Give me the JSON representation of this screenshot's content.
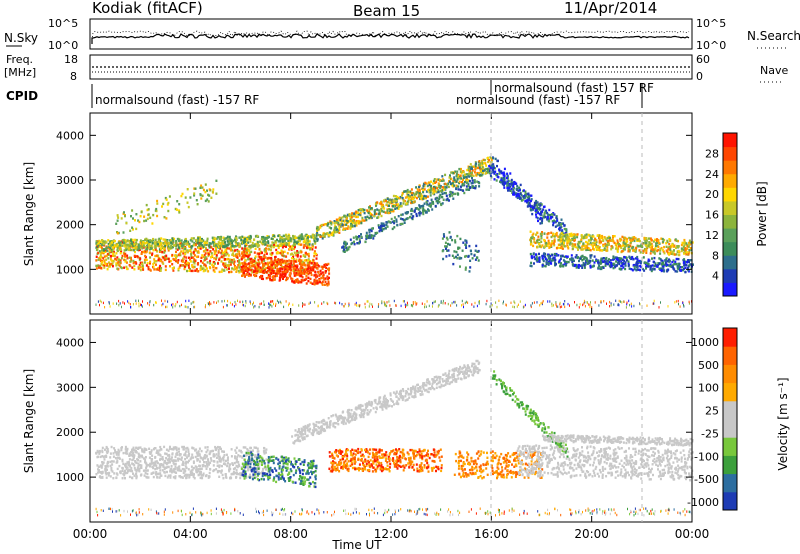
{
  "header": {
    "station": "Kodiak (fitACF)",
    "beam": "Beam 15",
    "date": "11/Apr/2014"
  },
  "aux_panels": {
    "nsky": {
      "label": "N.Sky",
      "yticks_left": [
        "10^5",
        "10^0"
      ],
      "yticks_right": [
        "10^5",
        "10^0"
      ],
      "right_label": "N.Search"
    },
    "freq": {
      "label_top": "Freq.",
      "label_unit": "[MHz]",
      "yticks_left": [
        "18",
        "8"
      ],
      "yticks_right": [
        "60",
        "0"
      ],
      "right_label": "Nave"
    },
    "cpid": {
      "label": "CPID",
      "segments": [
        "normalsound (fast) -157 RF",
        "normalsound (fast) 157 RF",
        "normalsound (fast) -157 RF"
      ]
    }
  },
  "chart_data": [
    {
      "type": "heatmap",
      "ylabel": "Slant Range [km]",
      "yticks": [
        1000,
        2000,
        3000,
        4000
      ],
      "ylim": [
        0,
        4500
      ],
      "xlim": [
        0,
        24
      ],
      "colorbar": {
        "label": "Power [dB]",
        "ticks": [
          "4",
          "8",
          "12",
          "16",
          "20",
          "24",
          "28"
        ],
        "colors": [
          "#1a1aff",
          "#1e3cb4",
          "#2d6e8c",
          "#3c8c5a",
          "#5aa05a",
          "#8cb43c",
          "#c8c828",
          "#ffd700",
          "#ffaa00",
          "#ff7800",
          "#ff4600",
          "#ff1400"
        ]
      }
    },
    {
      "type": "heatmap",
      "ylabel": "Slant Range [km]",
      "yticks": [
        1000,
        2000,
        3000,
        4000
      ],
      "ylim": [
        0,
        4500
      ],
      "xlim": [
        0,
        24
      ],
      "colorbar": {
        "label": "Velocity [m s⁻¹]",
        "ticks": [
          "1000",
          "500",
          "100",
          "25",
          "-25",
          "-100",
          "-500",
          "-1000"
        ],
        "colors": [
          "#1e3cb4",
          "#2d6ea0",
          "#3ca03c",
          "#78c83c",
          "#c8c8c8",
          "#c8c8c8",
          "#ffaa00",
          "#ff8c00",
          "#ff6400",
          "#ff1e00"
        ]
      }
    }
  ],
  "xaxis": {
    "label": "Time UT",
    "ticks": [
      "00:00",
      "04:00",
      "08:00",
      "12:00",
      "16:00",
      "20:00",
      "00:00"
    ]
  }
}
